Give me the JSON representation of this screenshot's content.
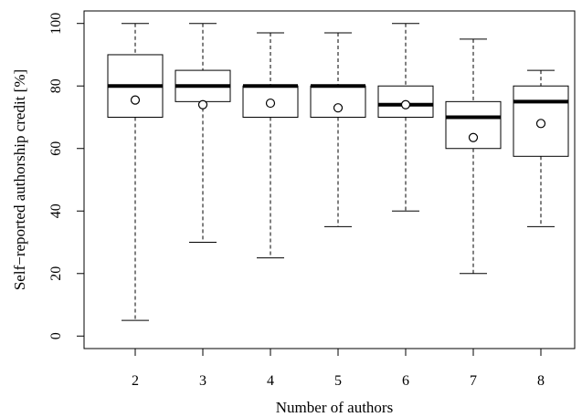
{
  "chart_data": {
    "type": "boxplot",
    "title": "",
    "xlabel": "Number of authors",
    "ylabel": "Self−reported authorship credit [%]",
    "categories": [
      "2",
      "3",
      "4",
      "5",
      "6",
      "7",
      "8"
    ],
    "ylim": [
      -4,
      104
    ],
    "yticks": [
      0,
      20,
      40,
      60,
      80,
      100
    ],
    "grid": false,
    "legend": "none",
    "boxes": [
      {
        "category": "2",
        "whisker_low": 5,
        "q1": 70,
        "median": 80,
        "q3": 90,
        "whisker_high": 100,
        "mean": 75.5
      },
      {
        "category": "3",
        "whisker_low": 30,
        "q1": 75,
        "median": 80,
        "q3": 85,
        "whisker_high": 100,
        "mean": 74
      },
      {
        "category": "4",
        "whisker_low": 25,
        "q1": 70,
        "median": 80,
        "q3": 80,
        "whisker_high": 97,
        "mean": 74.5
      },
      {
        "category": "5",
        "whisker_low": 35,
        "q1": 70,
        "median": 80,
        "q3": 80,
        "whisker_high": 97,
        "mean": 73
      },
      {
        "category": "6",
        "whisker_low": 40,
        "q1": 70,
        "median": 74,
        "q3": 80,
        "whisker_high": 100,
        "mean": 74
      },
      {
        "category": "7",
        "whisker_low": 20,
        "q1": 60,
        "median": 70,
        "q3": 75,
        "whisker_high": 95,
        "mean": 63.5
      },
      {
        "category": "8",
        "whisker_low": 35,
        "q1": 57.5,
        "median": 75,
        "q3": 80,
        "whisker_high": 85,
        "mean": 68
      }
    ],
    "colors": {
      "stroke": "#000000",
      "background": "#ffffff"
    }
  }
}
